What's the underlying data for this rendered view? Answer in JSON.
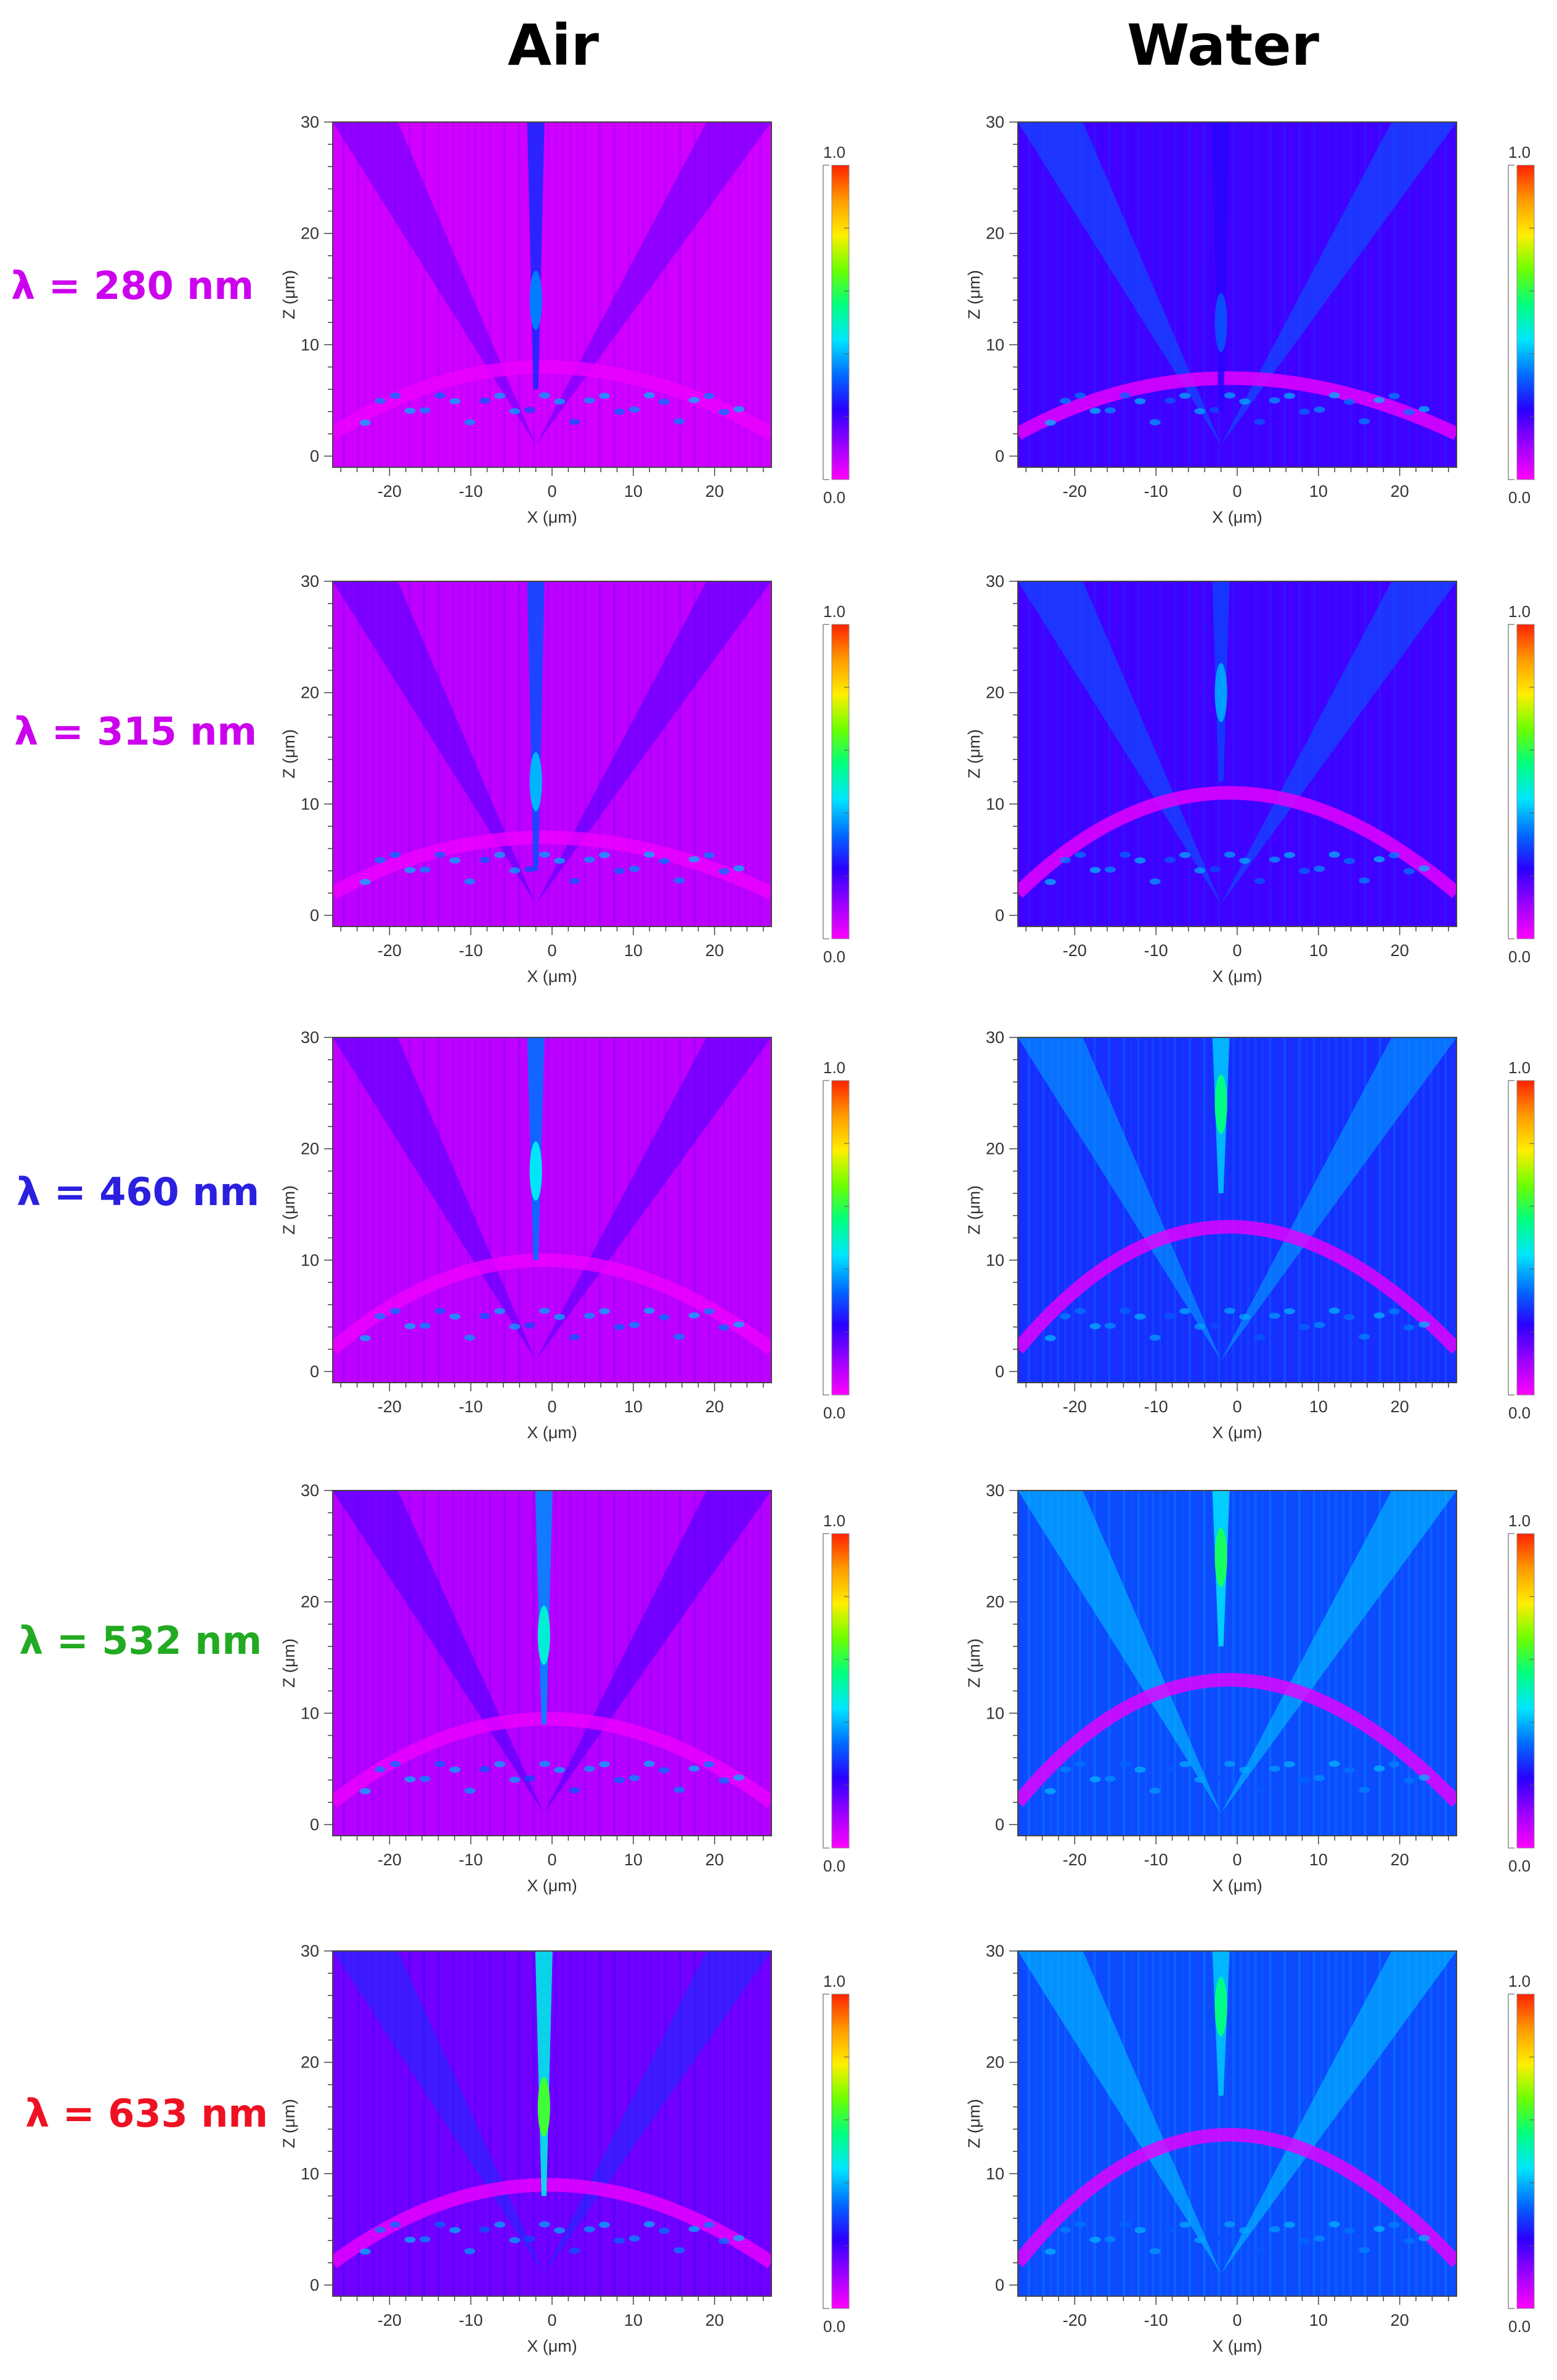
{
  "colors": {
    "cmap": [
      "#ff00ff",
      "#9b00ff",
      "#2a00ff",
      "#006bff",
      "#00e5ff",
      "#00ff7f",
      "#6cff00",
      "#ffee00",
      "#ff9a00",
      "#ff2200"
    ],
    "background": "#ffffff",
    "axis": "#444444",
    "wl_280": "#cc00ee",
    "wl_315": "#cc00ee",
    "wl_460": "#2b1fe0",
    "wl_532": "#22aa22",
    "wl_633": "#ee1122"
  },
  "columns": [
    {
      "key": "air",
      "title": "Air"
    },
    {
      "key": "water",
      "title": "Water"
    }
  ],
  "colorbar": {
    "min_label": "0.0",
    "max_label": "1.0"
  },
  "chart_data": [
    {
      "type": "heatmap",
      "medium": "Air",
      "wavelength_label": "λ = 280 nm",
      "xlabel": "X (μm)",
      "ylabel": "Z (μm)",
      "xlim": [
        -27,
        27
      ],
      "ylim": [
        -1,
        30
      ],
      "xticks": [
        -20,
        -10,
        0,
        10,
        20
      ],
      "yticks": [
        0,
        10,
        20,
        30
      ],
      "clim": [
        0.0,
        1.0
      ],
      "focal_peak_x": -2,
      "focal_peak_z": 14,
      "peak_intensity": 0.35,
      "background_level": 0.05
    },
    {
      "type": "heatmap",
      "medium": "Water",
      "wavelength_label": "λ = 280 nm",
      "xlabel": "X (μm)",
      "ylabel": "Z (μm)",
      "xlim": [
        -27,
        27
      ],
      "ylim": [
        -1,
        30
      ],
      "xticks": [
        -20,
        -10,
        0,
        10,
        20
      ],
      "yticks": [
        0,
        10,
        20,
        30
      ],
      "clim": [
        0.0,
        1.0
      ],
      "focal_peak_x": -2,
      "focal_peak_z": 12,
      "peak_intensity": 0.3,
      "background_level": 0.2
    },
    {
      "type": "heatmap",
      "medium": "Air",
      "wavelength_label": "λ = 315 nm",
      "xlabel": "X (μm)",
      "ylabel": "Z (μm)",
      "xlim": [
        -27,
        27
      ],
      "ylim": [
        -1,
        30
      ],
      "xticks": [
        -20,
        -10,
        0,
        10,
        20
      ],
      "yticks": [
        0,
        10,
        20,
        30
      ],
      "clim": [
        0.0,
        1.0
      ],
      "focal_peak_x": -2,
      "focal_peak_z": 12,
      "peak_intensity": 0.4,
      "background_level": 0.07
    },
    {
      "type": "heatmap",
      "medium": "Water",
      "wavelength_label": "λ = 315 nm",
      "xlabel": "X (μm)",
      "ylabel": "Z (μm)",
      "xlim": [
        -27,
        27
      ],
      "ylim": [
        -1,
        30
      ],
      "xticks": [
        -20,
        -10,
        0,
        10,
        20
      ],
      "yticks": [
        0,
        10,
        20,
        30
      ],
      "clim": [
        0.0,
        1.0
      ],
      "focal_peak_x": -2,
      "focal_peak_z": 20,
      "peak_intensity": 0.38,
      "background_level": 0.2
    },
    {
      "type": "heatmap",
      "medium": "Air",
      "wavelength_label": "λ = 460 nm",
      "xlabel": "X (μm)",
      "ylabel": "Z (μm)",
      "xlim": [
        -27,
        27
      ],
      "ylim": [
        -1,
        30
      ],
      "xticks": [
        -20,
        -10,
        0,
        10,
        20
      ],
      "yticks": [
        0,
        10,
        20,
        30
      ],
      "clim": [
        0.0,
        1.0
      ],
      "focal_peak_x": -2,
      "focal_peak_z": 18,
      "peak_intensity": 0.45,
      "background_level": 0.07
    },
    {
      "type": "heatmap",
      "medium": "Water",
      "wavelength_label": "λ = 460 nm",
      "xlabel": "X (μm)",
      "ylabel": "Z (μm)",
      "xlim": [
        -27,
        27
      ],
      "ylim": [
        -1,
        30
      ],
      "xticks": [
        -20,
        -10,
        0,
        10,
        20
      ],
      "yticks": [
        0,
        10,
        20,
        30
      ],
      "clim": [
        0.0,
        1.0
      ],
      "focal_peak_x": -2,
      "focal_peak_z": 24,
      "peak_intensity": 0.55,
      "background_level": 0.27
    },
    {
      "type": "heatmap",
      "medium": "Air",
      "wavelength_label": "λ = 532 nm",
      "xlabel": "X (μm)",
      "ylabel": "Z (μm)",
      "xlim": [
        -27,
        27
      ],
      "ylim": [
        -1,
        30
      ],
      "xticks": [
        -20,
        -10,
        0,
        10,
        20
      ],
      "yticks": [
        0,
        10,
        20,
        30
      ],
      "clim": [
        0.0,
        1.0
      ],
      "focal_peak_x": -1,
      "focal_peak_z": 17,
      "peak_intensity": 0.48,
      "background_level": 0.08
    },
    {
      "type": "heatmap",
      "medium": "Water",
      "wavelength_label": "λ = 532 nm",
      "xlabel": "X (μm)",
      "ylabel": "Z (μm)",
      "xlim": [
        -27,
        27
      ],
      "ylim": [
        -1,
        30
      ],
      "xticks": [
        -20,
        -10,
        0,
        10,
        20
      ],
      "yticks": [
        0,
        10,
        20,
        30
      ],
      "clim": [
        0.0,
        1.0
      ],
      "focal_peak_x": -2,
      "focal_peak_z": 24,
      "peak_intensity": 0.58,
      "background_level": 0.3
    },
    {
      "type": "heatmap",
      "medium": "Air",
      "wavelength_label": "λ = 633 nm",
      "xlabel": "X (μm)",
      "ylabel": "Z (μm)",
      "xlim": [
        -27,
        27
      ],
      "ylim": [
        -1,
        30
      ],
      "xticks": [
        -20,
        -10,
        0,
        10,
        20
      ],
      "yticks": [
        0,
        10,
        20,
        30
      ],
      "clim": [
        0.0,
        1.0
      ],
      "focal_peak_x": -1,
      "focal_peak_z": 16,
      "peak_intensity": 0.62,
      "background_level": 0.15
    },
    {
      "type": "heatmap",
      "medium": "Water",
      "wavelength_label": "λ = 633 nm",
      "xlabel": "X (μm)",
      "ylabel": "Z (μm)",
      "xlim": [
        -27,
        27
      ],
      "ylim": [
        -1,
        30
      ],
      "xticks": [
        -20,
        -10,
        0,
        10,
        20
      ],
      "yticks": [
        0,
        10,
        20,
        30
      ],
      "clim": [
        0.0,
        1.0
      ],
      "focal_peak_x": -2,
      "focal_peak_z": 25,
      "peak_intensity": 0.55,
      "background_level": 0.3
    }
  ]
}
